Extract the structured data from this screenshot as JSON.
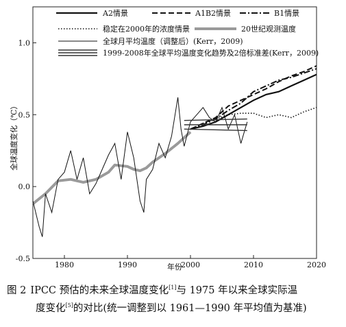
{
  "chart_data": {
    "type": "line",
    "xlabel": "年份",
    "ylabel": "全球温度变化（℃）",
    "xlim": [
      1975,
      2020
    ],
    "ylim": [
      -0.5,
      1.25
    ],
    "xticks": [
      1980,
      1990,
      2000,
      2010,
      2020
    ],
    "yticks": [
      -0.5,
      0.0,
      0.5,
      1.0
    ],
    "ytick_labels": [
      "-0.5",
      "0.0",
      "0.5",
      "1.0"
    ],
    "legend_position": "top",
    "legend": [
      {
        "label": "A2情景",
        "style": "solid-thick"
      },
      {
        "label": "A1B2情景",
        "style": "dashed"
      },
      {
        "label": "B1情景",
        "style": "dashdot"
      },
      {
        "label": "稳定在2000年的浓度情景",
        "style": "dotted"
      },
      {
        "label": "20世纪观测温度",
        "style": "gray-thick"
      },
      {
        "label": "全球月平均温度（调整后）(Kerr，2009)",
        "style": "thin"
      },
      {
        "label": "1999-2008年全球平均温度变化趋势及2倍标准差(Kerr，2009)",
        "style": "triple"
      }
    ],
    "series": [
      {
        "name": "20世纪观测温度",
        "x": [
          1975,
          1977,
          1979,
          1981,
          1983,
          1985,
          1987,
          1988,
          1990,
          1991,
          1992,
          1993,
          1994,
          1996,
          1998,
          2000
        ],
        "y": [
          -0.12,
          -0.05,
          0.04,
          0.05,
          0.03,
          0.05,
          0.1,
          0.15,
          0.14,
          0.12,
          0.11,
          0.13,
          0.17,
          0.23,
          0.3,
          0.38
        ]
      },
      {
        "name": "全球月平均温度（调整后）(Kerr，2009)",
        "x": [
          1975,
          1976,
          1976.5,
          1977,
          1978,
          1979,
          1980,
          1981,
          1982,
          1983,
          1984,
          1985,
          1986,
          1987,
          1988,
          1989,
          1990,
          1991,
          1992,
          1992.6,
          1993,
          1994,
          1995,
          1996,
          1997,
          1998,
          1998.5,
          1999,
          2000,
          2001,
          2002,
          2003,
          2004,
          2005,
          2006,
          2007,
          2008,
          2009
        ],
        "y": [
          -0.1,
          -0.28,
          -0.35,
          -0.05,
          -0.18,
          0.05,
          0.1,
          0.25,
          0.05,
          0.2,
          -0.05,
          0.02,
          0.12,
          0.22,
          0.3,
          0.05,
          0.38,
          0.2,
          -0.1,
          -0.18,
          0.05,
          0.12,
          0.3,
          0.2,
          0.35,
          0.62,
          0.4,
          0.28,
          0.45,
          0.5,
          0.55,
          0.48,
          0.45,
          0.55,
          0.4,
          0.5,
          0.3,
          0.45
        ]
      },
      {
        "name": "A2情景",
        "x": [
          2000,
          2002,
          2004,
          2006,
          2008,
          2010,
          2012,
          2014,
          2016,
          2018,
          2020
        ],
        "y": [
          0.4,
          0.42,
          0.45,
          0.5,
          0.55,
          0.6,
          0.64,
          0.66,
          0.7,
          0.74,
          0.78
        ]
      },
      {
        "name": "A1B2情景",
        "x": [
          2000,
          2002,
          2004,
          2006,
          2008,
          2010,
          2012,
          2014,
          2016,
          2018,
          2020
        ],
        "y": [
          0.4,
          0.44,
          0.48,
          0.56,
          0.6,
          0.64,
          0.68,
          0.73,
          0.77,
          0.8,
          0.84
        ]
      },
      {
        "name": "B1情景",
        "x": [
          2000,
          2002,
          2004,
          2006,
          2008,
          2010,
          2012,
          2014,
          2016,
          2018,
          2020
        ],
        "y": [
          0.4,
          0.43,
          0.47,
          0.53,
          0.58,
          0.66,
          0.7,
          0.74,
          0.76,
          0.79,
          0.82
        ]
      },
      {
        "name": "稳定在2000年的浓度情景",
        "x": [
          2000,
          2002,
          2004,
          2006,
          2008,
          2010,
          2012,
          2014,
          2016,
          2018,
          2020
        ],
        "y": [
          0.4,
          0.44,
          0.47,
          0.5,
          0.51,
          0.51,
          0.48,
          0.5,
          0.48,
          0.52,
          0.55
        ]
      },
      {
        "name": "1999-2008年全球平均温度变化趋势及2倍标准差(Kerr，2009)",
        "x": [
          1999,
          2009
        ],
        "y_center": [
          0.43,
          0.43
        ],
        "y_upper": [
          0.46,
          0.47
        ],
        "y_lower": [
          0.4,
          0.39
        ]
      }
    ]
  },
  "caption": {
    "figure_label": "图 2",
    "line1": "IPCC 预估的未来全球温度变化",
    "ref1": "[1]",
    "line1_rest": "与 1975 年以来全球实际温",
    "line2": "度变化",
    "ref2": "[5]",
    "line2_rest": "的对比(统一调整到以 1961—1990 年平均值为基准)"
  }
}
